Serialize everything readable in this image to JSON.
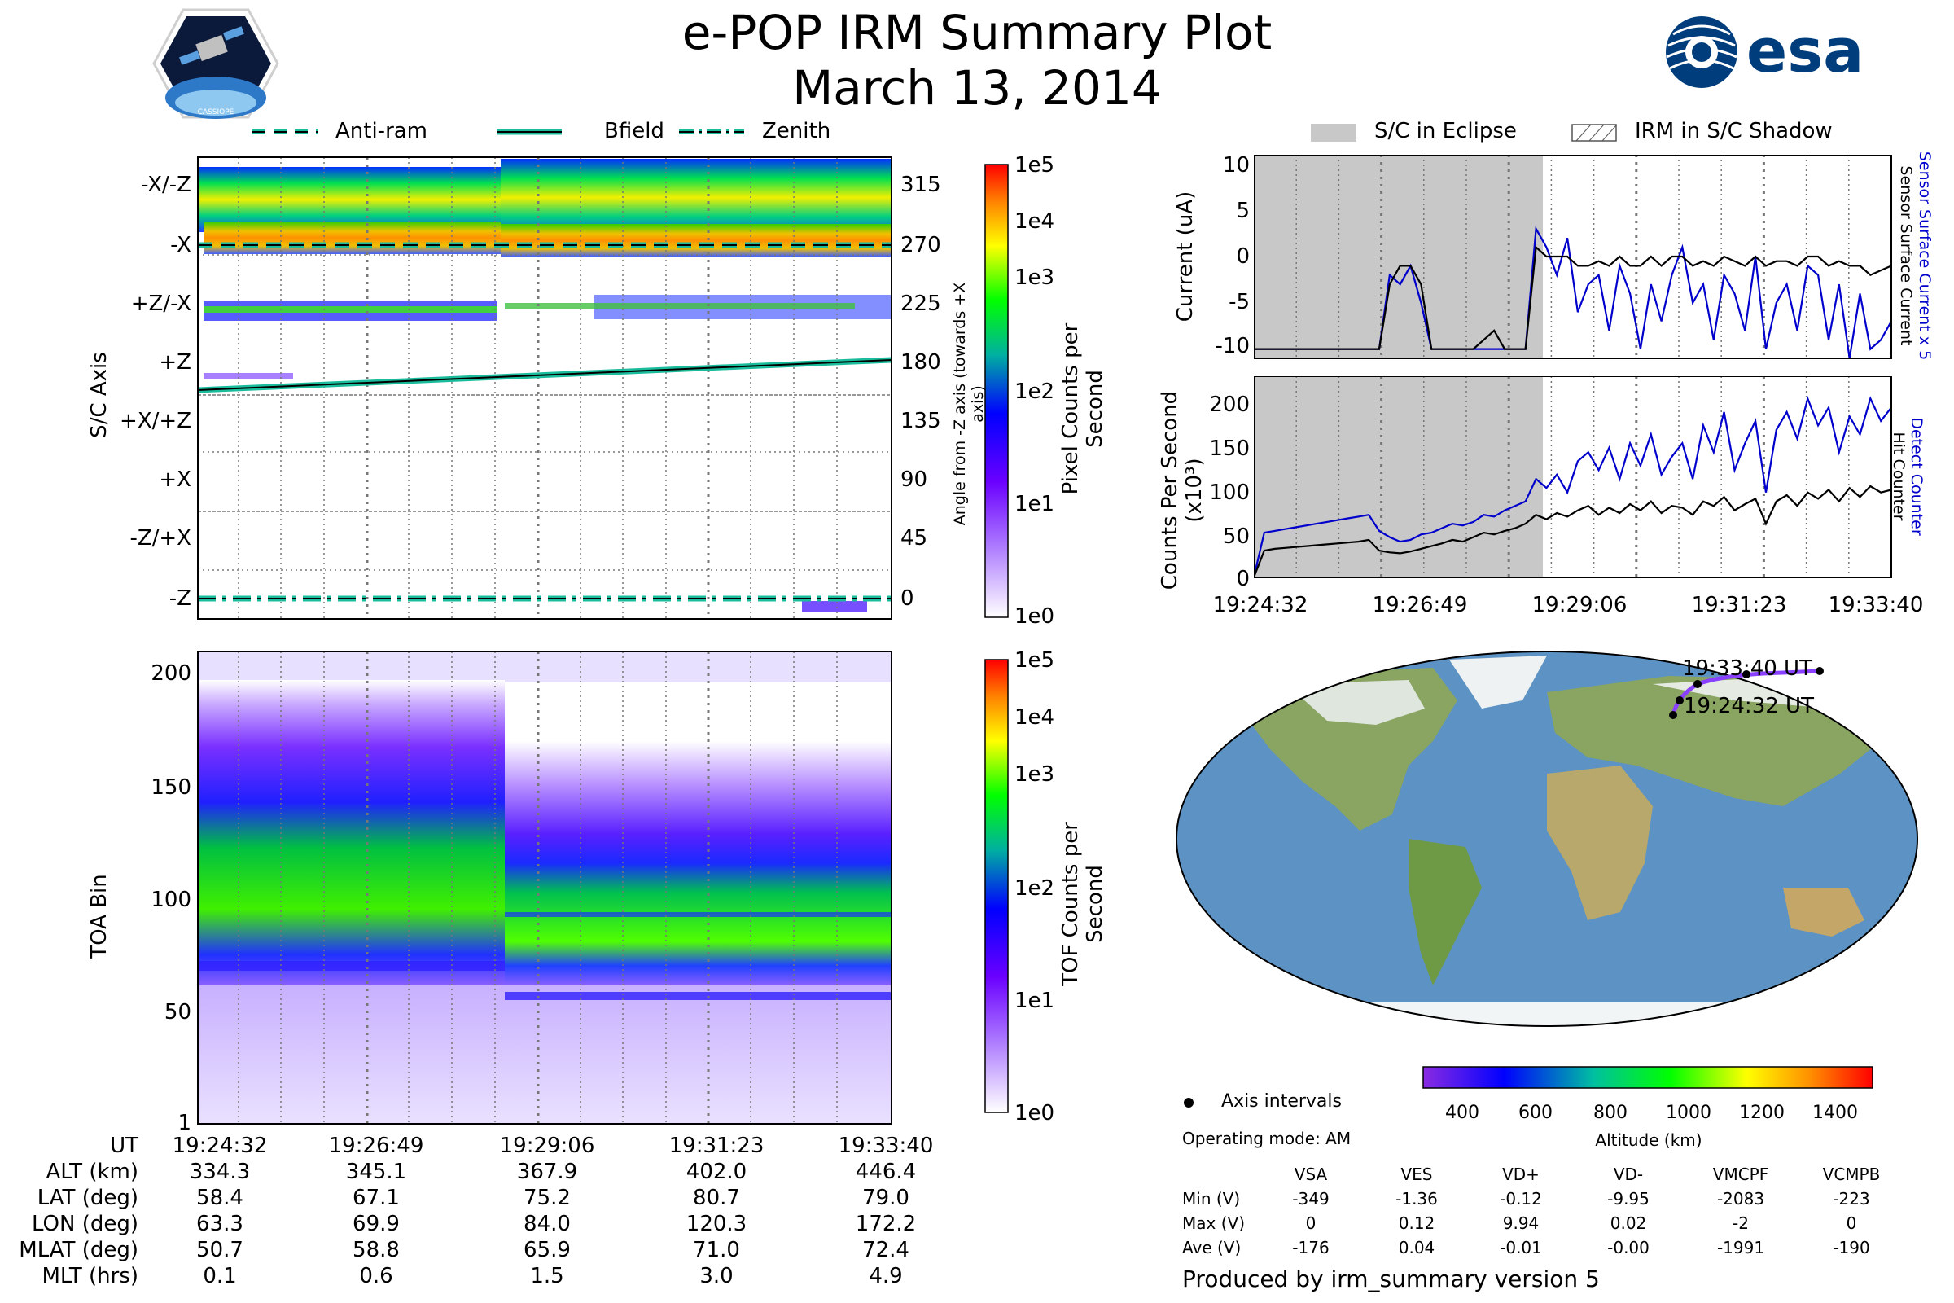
{
  "header": {
    "title": "e-POP IRM Summary Plot",
    "date": "March 13, 2014",
    "logo_left_text": "CASSIOPE",
    "logo_right_text": "esa"
  },
  "legend_top_left": [
    {
      "label": "Anti-ram",
      "style": "dashed"
    },
    {
      "label": "Bfield",
      "style": "solid"
    },
    {
      "label": "Zenith",
      "style": "dashdot"
    }
  ],
  "legend_top_right": [
    {
      "label": "S/C in Eclipse"
    },
    {
      "label": "IRM in S/C Shadow"
    }
  ],
  "colors": {
    "accent_line": "#1abc9c",
    "current_line": "#0000cc",
    "eclipse_fill": "#c8c8c8"
  },
  "chart_data": [
    {
      "type": "heatmap",
      "name": "sc-axis-spectrogram",
      "ylabel": "S/C Axis",
      "ylabel_right": "Angle from -Z axis (towards +X axis)",
      "y_categories": [
        "-X/-Z",
        "-X",
        "+Z/-X",
        "+Z",
        "+X/+Z",
        "+X",
        "-Z/+X",
        "-Z"
      ],
      "y_right_ticks": [
        "315",
        "270",
        "225",
        "180",
        "135",
        "90",
        "45",
        "0"
      ],
      "colorbar_label": "Pixel Counts per Second",
      "colorbar_ticks": [
        "1e5",
        "1e4",
        "1e3",
        "1e2",
        "1e1",
        "1e0"
      ],
      "lines": [
        {
          "name": "Anti-ram",
          "angle": 270
        },
        {
          "name": "Bfield",
          "angle_start": 165,
          "angle_end": 184
        },
        {
          "name": "Zenith",
          "angle": 0
        }
      ]
    },
    {
      "type": "heatmap",
      "name": "toa-spectrogram",
      "ylabel": "TOA Bin",
      "yticks": [
        "200",
        "150",
        "100",
        "50",
        "1"
      ],
      "ylim": [
        1,
        210
      ],
      "colorbar_label": "TOF Counts per Second",
      "colorbar_ticks": [
        "1e5",
        "1e4",
        "1e3",
        "1e2",
        "1e1",
        "1e0"
      ],
      "band_lower_edge": [
        65,
        64,
        63,
        62,
        61,
        60,
        58,
        55,
        52,
        51,
        50,
        50
      ]
    },
    {
      "type": "line",
      "name": "current",
      "ylabel": "Current (uA)",
      "ylabel_right_1": "Sensor Surface Current x 5",
      "ylabel_right_2": "Sensor Surface Current",
      "yticks": [
        "10",
        "5",
        "0",
        "-5",
        "-10"
      ],
      "ylim": [
        -11,
        11
      ],
      "series": [
        {
          "name": "Sensor Surface Current x 5",
          "color": "#0000cc",
          "values": [
            -10,
            -10,
            -10,
            -10,
            -10,
            -10,
            -10,
            -10,
            -10,
            -10,
            -10,
            -10,
            -10,
            -2,
            -3,
            -1,
            -5,
            -10,
            -10,
            -10,
            -10,
            -10,
            -10,
            -10,
            -10,
            -10,
            -10,
            3,
            1,
            -2,
            2,
            -6,
            -3,
            -2,
            -8,
            -1,
            -4,
            -10,
            -3,
            -7,
            -2,
            1,
            -5,
            -3,
            -9,
            -2,
            -4,
            -8,
            0,
            -10,
            -5,
            -3,
            -8,
            -1,
            -2,
            -9,
            -3,
            -11,
            -4,
            -10,
            -9,
            -7
          ]
        },
        {
          "name": "Sensor Surface Current",
          "color": "#000000",
          "values": [
            -10,
            -10,
            -10,
            -10,
            -10,
            -10,
            -10,
            -10,
            -10,
            -10,
            -10,
            -10,
            -10,
            -3,
            -1,
            -1,
            -3,
            -10,
            -10,
            -10,
            -10,
            -10,
            -9,
            -8,
            -10,
            -10,
            -10,
            1,
            0,
            0,
            0,
            -1,
            -1,
            -0.5,
            -1,
            0,
            -1,
            -1,
            0,
            -1,
            0,
            0,
            -1,
            -0.5,
            -1,
            0,
            -0.5,
            -1,
            0,
            -1,
            -0.5,
            -0.5,
            -1,
            0,
            0,
            -1,
            -0.5,
            -1,
            -1,
            -2,
            -1.5,
            -1
          ]
        }
      ]
    },
    {
      "type": "line",
      "name": "counts",
      "ylabel": "Counts Per Second (x10³)",
      "ylabel_right_1": "Detect Counter",
      "ylabel_right_2": "Hit Counter",
      "yticks": [
        "200",
        "150",
        "100",
        "50",
        "0"
      ],
      "ylim": [
        0,
        225
      ],
      "series": [
        {
          "name": "Detect Counter",
          "color": "#0000cc",
          "values": [
            0,
            50,
            52,
            54,
            56,
            58,
            60,
            62,
            64,
            66,
            68,
            70,
            52,
            45,
            40,
            42,
            48,
            50,
            55,
            60,
            58,
            62,
            70,
            68,
            75,
            80,
            85,
            110,
            100,
            115,
            95,
            130,
            140,
            120,
            145,
            110,
            150,
            125,
            160,
            115,
            135,
            150,
            110,
            170,
            140,
            185,
            120,
            150,
            175,
            95,
            165,
            185,
            155,
            200,
            170,
            190,
            140,
            180,
            160,
            200,
            175,
            190
          ]
        },
        {
          "name": "Hit Counter",
          "color": "#000000",
          "values": [
            0,
            30,
            32,
            33,
            34,
            35,
            36,
            37,
            38,
            39,
            40,
            42,
            30,
            28,
            27,
            29,
            32,
            35,
            38,
            42,
            40,
            45,
            50,
            48,
            52,
            55,
            60,
            70,
            65,
            72,
            68,
            75,
            80,
            70,
            78,
            72,
            82,
            75,
            85,
            72,
            80,
            78,
            70,
            85,
            80,
            90,
            75,
            82,
            88,
            60,
            85,
            92,
            80,
            95,
            88,
            98,
            85,
            100,
            90,
            102,
            95,
            98
          ]
        }
      ]
    }
  ],
  "time_axis": {
    "ticks": [
      "19:24:32",
      "19:26:49",
      "19:29:06",
      "19:31:23",
      "19:33:40"
    ]
  },
  "ephemeris": {
    "labels": [
      "UT",
      "ALT (km)",
      "LAT (deg)",
      "LON (deg)",
      "MLAT (deg)",
      "MLT (hrs)"
    ],
    "columns": [
      [
        "19:24:32",
        "334.3",
        "58.4",
        "63.3",
        "50.7",
        "0.1"
      ],
      [
        "19:26:49",
        "345.1",
        "67.1",
        "69.9",
        "58.8",
        "0.6"
      ],
      [
        "19:29:06",
        "367.9",
        "75.2",
        "84.0",
        "65.9",
        "1.5"
      ],
      [
        "19:31:23",
        "402.0",
        "80.7",
        "120.3",
        "71.0",
        "3.0"
      ],
      [
        "19:33:40",
        "446.4",
        "79.0",
        "172.2",
        "72.4",
        "4.9"
      ]
    ]
  },
  "map": {
    "start_label": "19:24:32 UT",
    "end_label": "19:33:40 UT",
    "legend_dot_label": "Axis intervals",
    "operating_mode": "Operating mode: AM",
    "colorbar_label": "Altitude (km)",
    "colorbar_ticks": [
      "400",
      "600",
      "800",
      "1000",
      "1200",
      "1400"
    ]
  },
  "voltages": {
    "headers": [
      "VSA",
      "VES",
      "VD+",
      "VD-",
      "VMCPF",
      "VCMPB"
    ],
    "rows": [
      {
        "label": "Min (V)",
        "values": [
          "-349",
          "-1.36",
          "-0.12",
          "-9.95",
          "-2083",
          "-223"
        ]
      },
      {
        "label": "Max (V)",
        "values": [
          "0",
          "0.12",
          "9.94",
          "0.02",
          "-2",
          "0"
        ]
      },
      {
        "label": "Ave (V)",
        "values": [
          "-176",
          "0.04",
          "-0.01",
          "-0.00",
          "-1991",
          "-190"
        ]
      }
    ]
  },
  "footer": {
    "produced_by": "Produced by irm_summary version 5"
  }
}
